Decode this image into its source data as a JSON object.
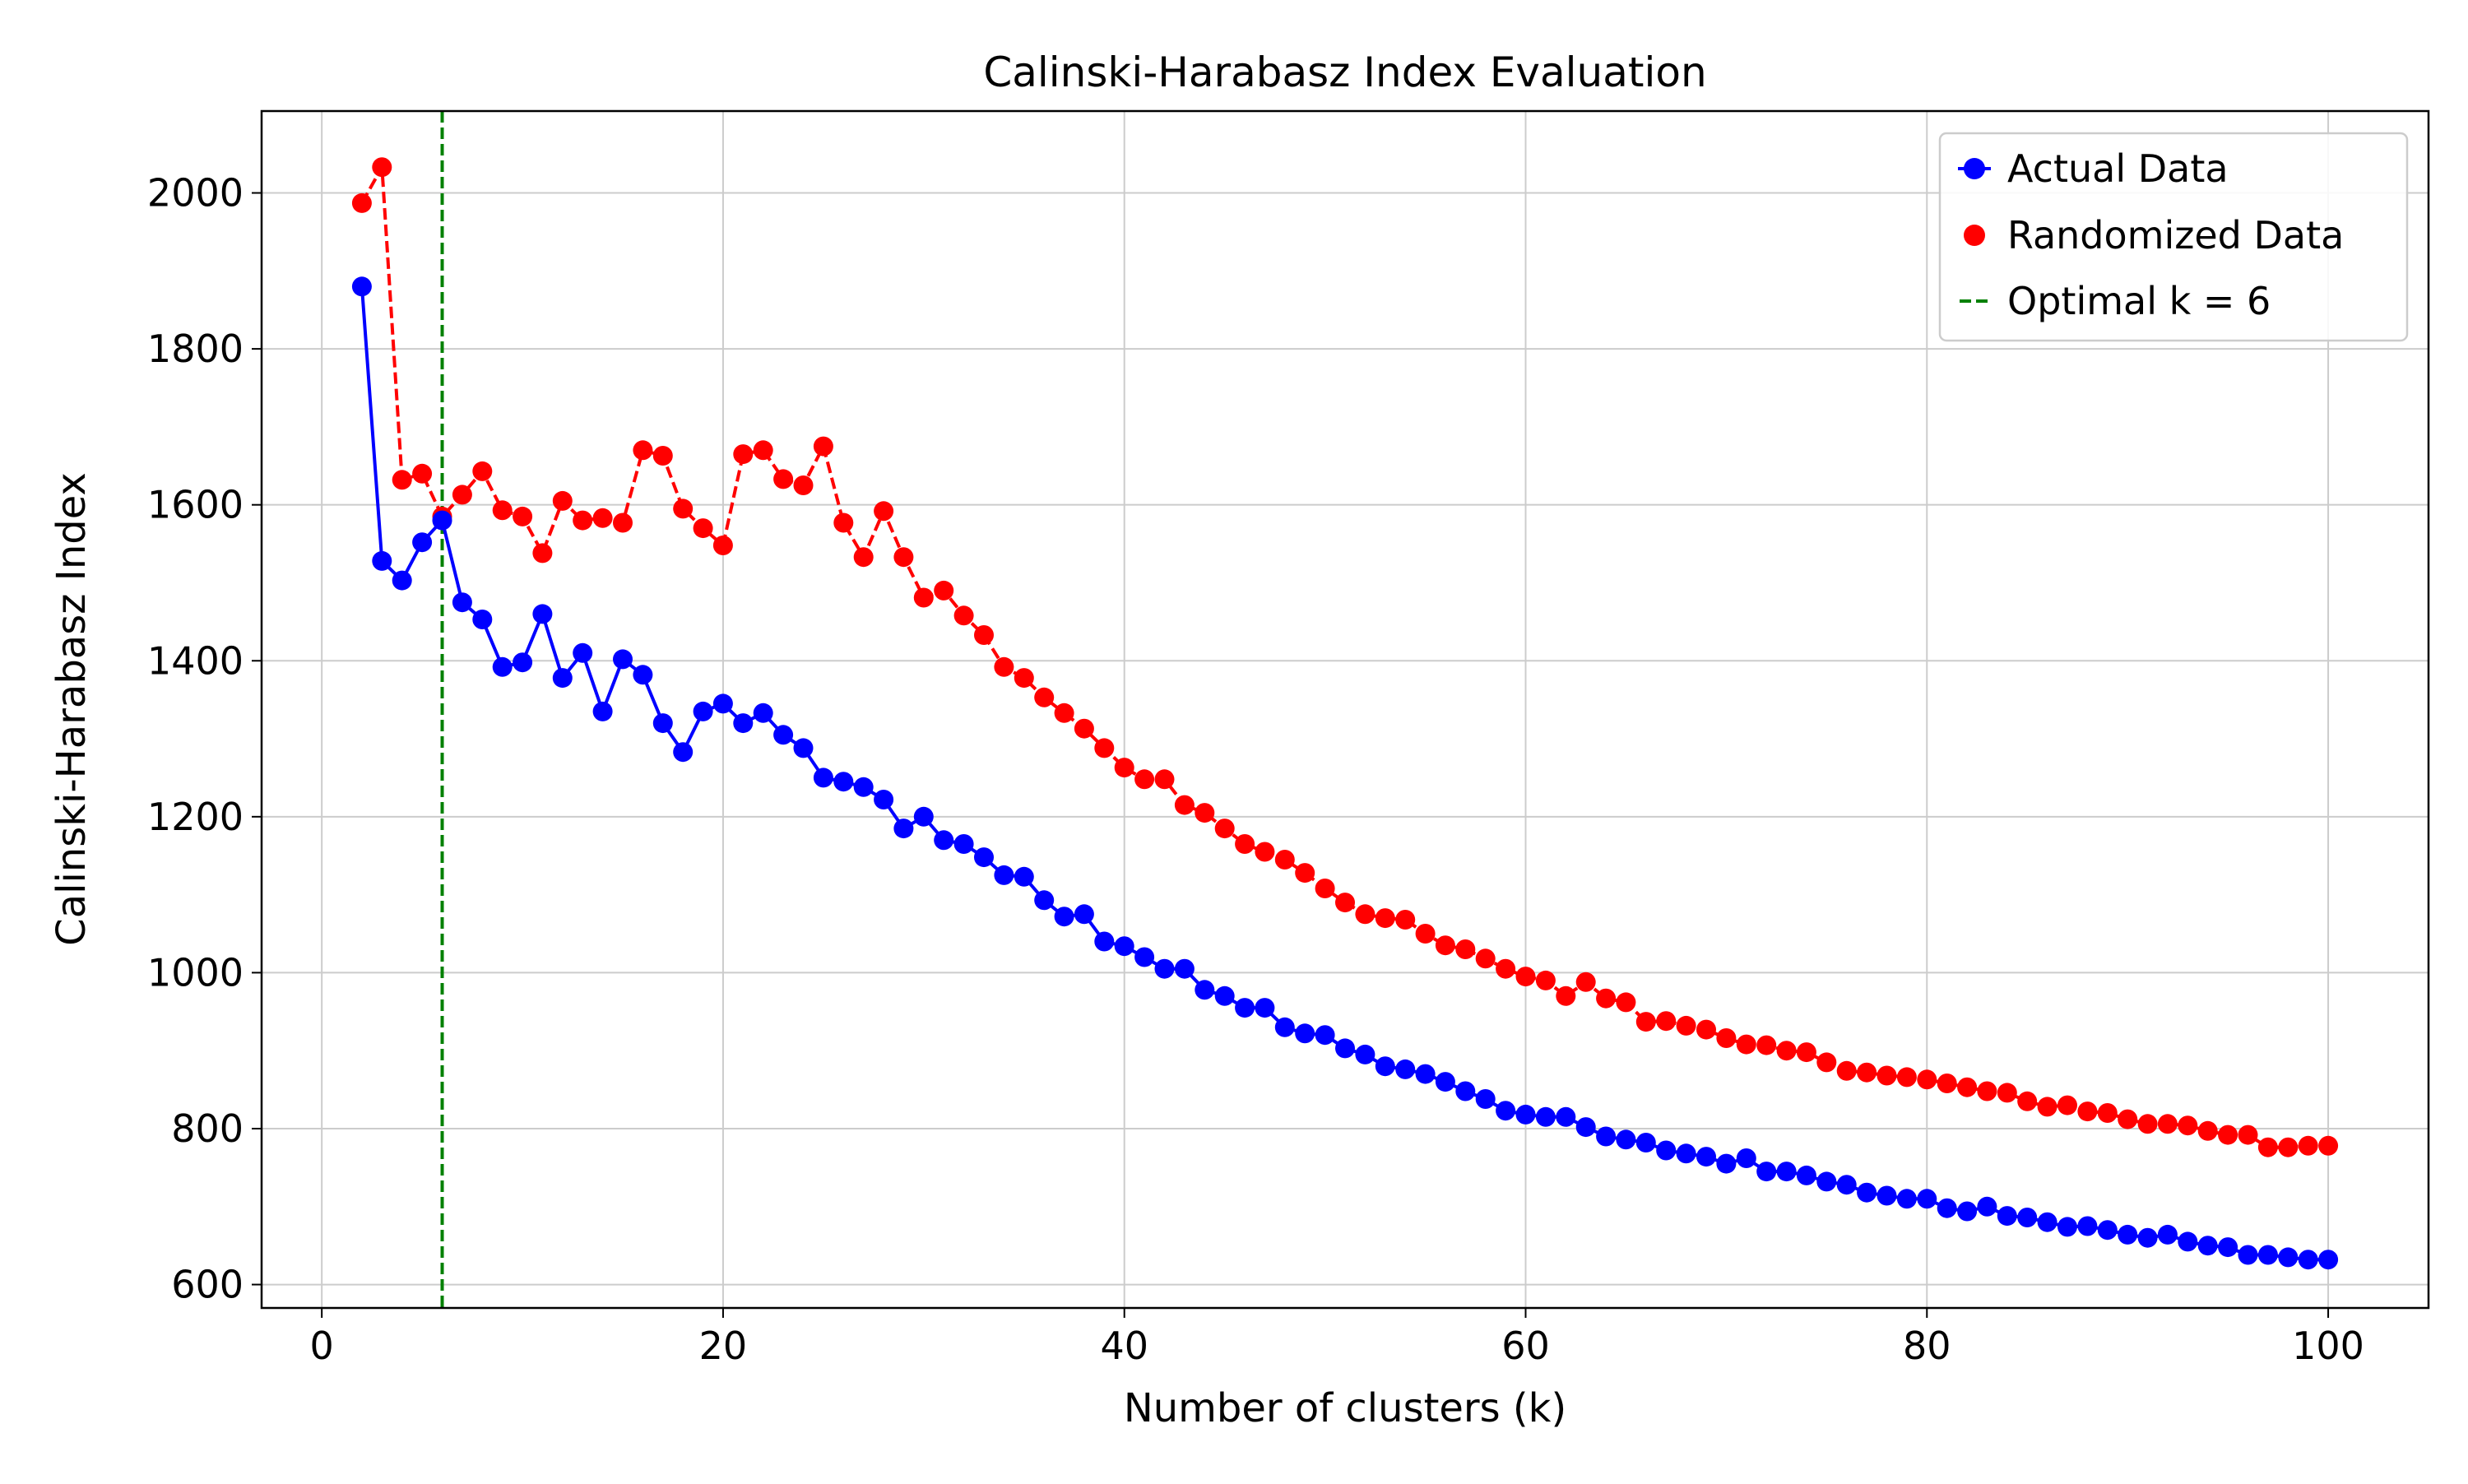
{
  "chart_data": {
    "type": "line",
    "title": "Calinski-Harabasz Index Evaluation",
    "xlabel": "Number of clusters (k)",
    "ylabel": "Calinski-Harabasz Index",
    "xlim": [
      -3,
      105
    ],
    "ylim": [
      570,
      2105
    ],
    "xticks": [
      0,
      20,
      40,
      60,
      80,
      100
    ],
    "yticks": [
      600,
      800,
      1000,
      1200,
      1400,
      1600,
      1800,
      2000
    ],
    "grid": true,
    "legend_position": "top-right",
    "x": [
      2,
      3,
      4,
      5,
      6,
      7,
      8,
      9,
      10,
      11,
      12,
      13,
      14,
      15,
      16,
      17,
      18,
      19,
      20,
      21,
      22,
      23,
      24,
      25,
      26,
      27,
      28,
      29,
      30,
      31,
      32,
      33,
      34,
      35,
      36,
      37,
      38,
      39,
      40,
      41,
      42,
      43,
      44,
      45,
      46,
      47,
      48,
      49,
      50,
      51,
      52,
      53,
      54,
      55,
      56,
      57,
      58,
      59,
      60,
      61,
      62,
      63,
      64,
      65,
      66,
      67,
      68,
      69,
      70,
      71,
      72,
      73,
      74,
      75,
      76,
      77,
      78,
      79,
      80,
      81,
      82,
      83,
      84,
      85,
      86,
      87,
      88,
      89,
      90,
      91,
      92,
      93,
      94,
      95,
      96,
      97,
      98,
      99,
      100
    ],
    "series": [
      {
        "name": "Actual Data",
        "color": "#0000ff",
        "line_style": "solid",
        "marker": "circle",
        "values": [
          1880,
          1528,
          1503,
          1552,
          1580,
          1475,
          1453,
          1392,
          1398,
          1460,
          1378,
          1410,
          1335,
          1402,
          1382,
          1320,
          1283,
          1335,
          1345,
          1320,
          1333,
          1305,
          1288,
          1250,
          1245,
          1238,
          1222,
          1185,
          1200,
          1170,
          1165,
          1148,
          1125,
          1123,
          1093,
          1072,
          1075,
          1040,
          1034,
          1020,
          1005,
          1005,
          978,
          970,
          955,
          955,
          930,
          922,
          920,
          903,
          895,
          880,
          876,
          870,
          860,
          848,
          838,
          823,
          818,
          815,
          815,
          802,
          790,
          786,
          782,
          772,
          768,
          764,
          755,
          762,
          745,
          745,
          740,
          732,
          728,
          718,
          714,
          710,
          710,
          698,
          694,
          700,
          688,
          686,
          680,
          674,
          675,
          670,
          664,
          660,
          664,
          655,
          650,
          648,
          638,
          638,
          635,
          632,
          632
        ]
      },
      {
        "name": "Randomized Data",
        "color": "#ff0000",
        "line_style": "dashed",
        "marker": "circle",
        "values": [
          1987,
          2033,
          1632,
          1640,
          1585,
          1613,
          1643,
          1593,
          1585,
          1538,
          1605,
          1580,
          1583,
          1577,
          1670,
          1663,
          1595,
          1570,
          1548,
          1665,
          1670,
          1633,
          1625,
          1675,
          1577,
          1533,
          1592,
          1533,
          1481,
          1490,
          1458,
          1433,
          1392,
          1378,
          1353,
          1333,
          1313,
          1288,
          1263,
          1248,
          1248,
          1215,
          1205,
          1185,
          1165,
          1155,
          1145,
          1128,
          1108,
          1090,
          1075,
          1070,
          1068,
          1050,
          1035,
          1030,
          1018,
          1005,
          995,
          990,
          970,
          988,
          967,
          962,
          937,
          938,
          932,
          927,
          916,
          908,
          907,
          900,
          898,
          885,
          874,
          872,
          868,
          866,
          863,
          858,
          853,
          848,
          846,
          835,
          828,
          830,
          822,
          820,
          812,
          806,
          806,
          804,
          797,
          792,
          792,
          776,
          776,
          778,
          778
        ]
      }
    ],
    "optimal_k_line": {
      "x": 6,
      "label": "Optimal k = 6",
      "color": "#008000",
      "line_style": "dashed"
    }
  }
}
